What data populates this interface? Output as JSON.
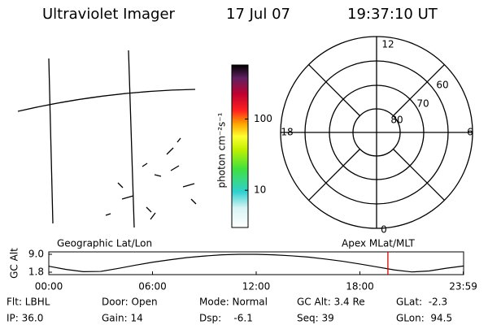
{
  "header": {
    "instrument": "Ultraviolet Imager",
    "date": "17 Jul 07",
    "time": "19:37:10 UT"
  },
  "colorbar": {
    "label": "photon cm⁻²s⁻¹",
    "lim": [
      3,
      575
    ],
    "ticks": [
      10,
      100
    ],
    "log": true
  },
  "polar": {
    "clock_labels": [
      "12",
      "18",
      "6",
      "0"
    ],
    "lat_labels": [
      "60",
      "70",
      "80"
    ]
  },
  "panel_labels": [
    "Geographic Lat/Lon",
    "Apex MLat/MLT"
  ],
  "chart_data": {
    "type": "line",
    "ylabel": "GC Alt",
    "x": [
      0,
      1,
      2,
      3,
      4,
      5,
      6,
      7,
      8,
      9,
      10,
      11,
      12,
      13,
      14,
      15,
      16,
      17,
      18,
      19,
      20,
      21,
      22,
      23,
      24
    ],
    "values": [
      4.2,
      2.9,
      2.0,
      2.1,
      3.3,
      4.6,
      5.8,
      6.8,
      7.7,
      8.3,
      8.8,
      9.0,
      9.0,
      8.8,
      8.4,
      7.9,
      7.1,
      6.2,
      5.1,
      3.9,
      2.7,
      1.9,
      2.3,
      3.4,
      4.3
    ],
    "color": "#000000",
    "xlim": [
      0,
      24
    ],
    "xticks": [
      {
        "value": 0,
        "label": "00:00"
      },
      {
        "value": 6,
        "label": "06:00"
      },
      {
        "value": 12,
        "label": "12:00"
      },
      {
        "value": 18,
        "label": "18:00"
      },
      {
        "value": 23.98,
        "label": "23:59"
      }
    ],
    "ylim": [
      1.8,
      9.0
    ],
    "yticks": [
      {
        "value": 9.0,
        "label": "9.0"
      },
      {
        "value": 1.8,
        "label": "1.8"
      }
    ],
    "marker_x": 19.62,
    "marker_color": "#e00000"
  },
  "info": [
    [
      "Flt: LBHL",
      "Door: Open",
      "Mode: Normal",
      "GC Alt: 3.4 Re",
      "GLat:  -2.3"
    ],
    [
      "IP: 36.0",
      "Gain: 14",
      "Dsp:    -6.1",
      "Seq: 39",
      "GLon:  94.5"
    ]
  ]
}
